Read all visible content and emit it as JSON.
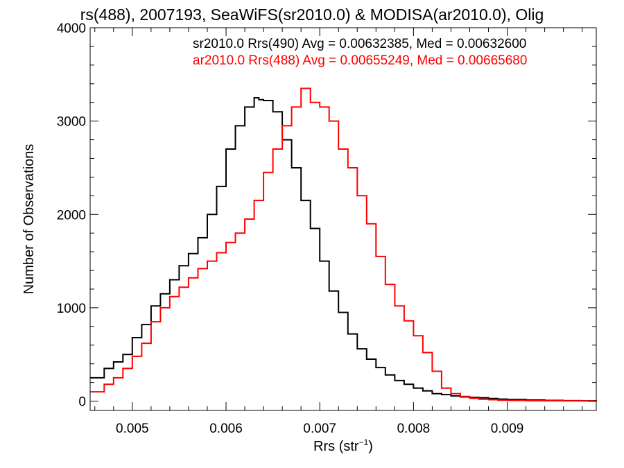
{
  "chart_data": {
    "type": "line",
    "title": "rs(488), 2007193, SeaWiFS(sr2010.0) & MODISA(ar2010.0), Olig",
    "xlabel": "Rrs (str",
    "xlabel_sup": "−1",
    "xlabel_close": ")",
    "ylabel": "Number of Observations",
    "xlim": [
      0.00455,
      0.00995
    ],
    "ylim": [
      -100,
      4000
    ],
    "xticks": [
      {
        "value": 0.005,
        "label": "0.005"
      },
      {
        "value": 0.006,
        "label": "0.006"
      },
      {
        "value": 0.007,
        "label": "0.007"
      },
      {
        "value": 0.008,
        "label": "0.008"
      },
      {
        "value": 0.009,
        "label": "0.009"
      }
    ],
    "yticks": [
      {
        "value": 0,
        "label": "0"
      },
      {
        "value": 1000,
        "label": "1000"
      },
      {
        "value": 2000,
        "label": "2000"
      },
      {
        "value": 3000,
        "label": "3000"
      },
      {
        "value": 4000,
        "label": "4000"
      }
    ],
    "legend_placement": "top-right",
    "series": [
      {
        "name": "sr2010.0 Rrs(490) Avg = 0.00632385, Med = 0.00632600",
        "color": "#000000",
        "x": [
          0.00455,
          0.0047,
          0.0048,
          0.0049,
          0.005,
          0.0051,
          0.0052,
          0.0053,
          0.0054,
          0.0055,
          0.0056,
          0.0057,
          0.0058,
          0.0059,
          0.006,
          0.0061,
          0.0062,
          0.0063,
          0.00635,
          0.0064,
          0.0065,
          0.0066,
          0.0067,
          0.0068,
          0.0069,
          0.007,
          0.0071,
          0.0072,
          0.0073,
          0.0074,
          0.0075,
          0.0076,
          0.0077,
          0.0078,
          0.0079,
          0.008,
          0.0081,
          0.0082,
          0.0083,
          0.0084,
          0.0085,
          0.0086,
          0.0087,
          0.0088,
          0.0089,
          0.009,
          0.0092,
          0.0094,
          0.0096,
          0.0098,
          0.00995
        ],
        "y": [
          250,
          350,
          420,
          500,
          680,
          820,
          1020,
          1150,
          1300,
          1450,
          1580,
          1750,
          2000,
          2300,
          2700,
          2950,
          3150,
          3250,
          3230,
          3220,
          3100,
          2800,
          2500,
          2150,
          1850,
          1500,
          1180,
          950,
          720,
          560,
          450,
          360,
          280,
          220,
          180,
          140,
          110,
          80,
          70,
          55,
          45,
          40,
          35,
          28,
          22,
          18,
          12,
          8,
          5,
          3,
          2
        ]
      },
      {
        "name": "ar2010.0 Rrs(488) Avg = 0.00655249, Med = 0.00665680",
        "color": "#ff0000",
        "x": [
          0.00455,
          0.0047,
          0.0048,
          0.0049,
          0.005,
          0.0051,
          0.0052,
          0.0053,
          0.0054,
          0.0055,
          0.0056,
          0.0057,
          0.0058,
          0.0059,
          0.006,
          0.0061,
          0.0062,
          0.0063,
          0.0064,
          0.0065,
          0.0066,
          0.0067,
          0.0068,
          0.0069,
          0.007,
          0.0071,
          0.0072,
          0.0073,
          0.0074,
          0.0075,
          0.0076,
          0.0077,
          0.0078,
          0.0079,
          0.008,
          0.0081,
          0.0082,
          0.0083,
          0.0084,
          0.0085,
          0.0086,
          0.0087,
          0.0088,
          0.0089,
          0.009,
          0.0092,
          0.0094,
          0.0096,
          0.0098,
          0.00995
        ],
        "y": [
          100,
          180,
          250,
          350,
          480,
          620,
          850,
          1000,
          1120,
          1220,
          1320,
          1420,
          1500,
          1590,
          1700,
          1800,
          1950,
          2150,
          2450,
          2700,
          2950,
          3150,
          3350,
          3200,
          3150,
          3000,
          2700,
          2500,
          2200,
          1900,
          1550,
          1250,
          1020,
          860,
          700,
          520,
          320,
          140,
          80,
          50,
          30,
          20,
          15,
          10,
          8,
          5,
          4,
          3,
          2,
          1
        ]
      }
    ]
  }
}
